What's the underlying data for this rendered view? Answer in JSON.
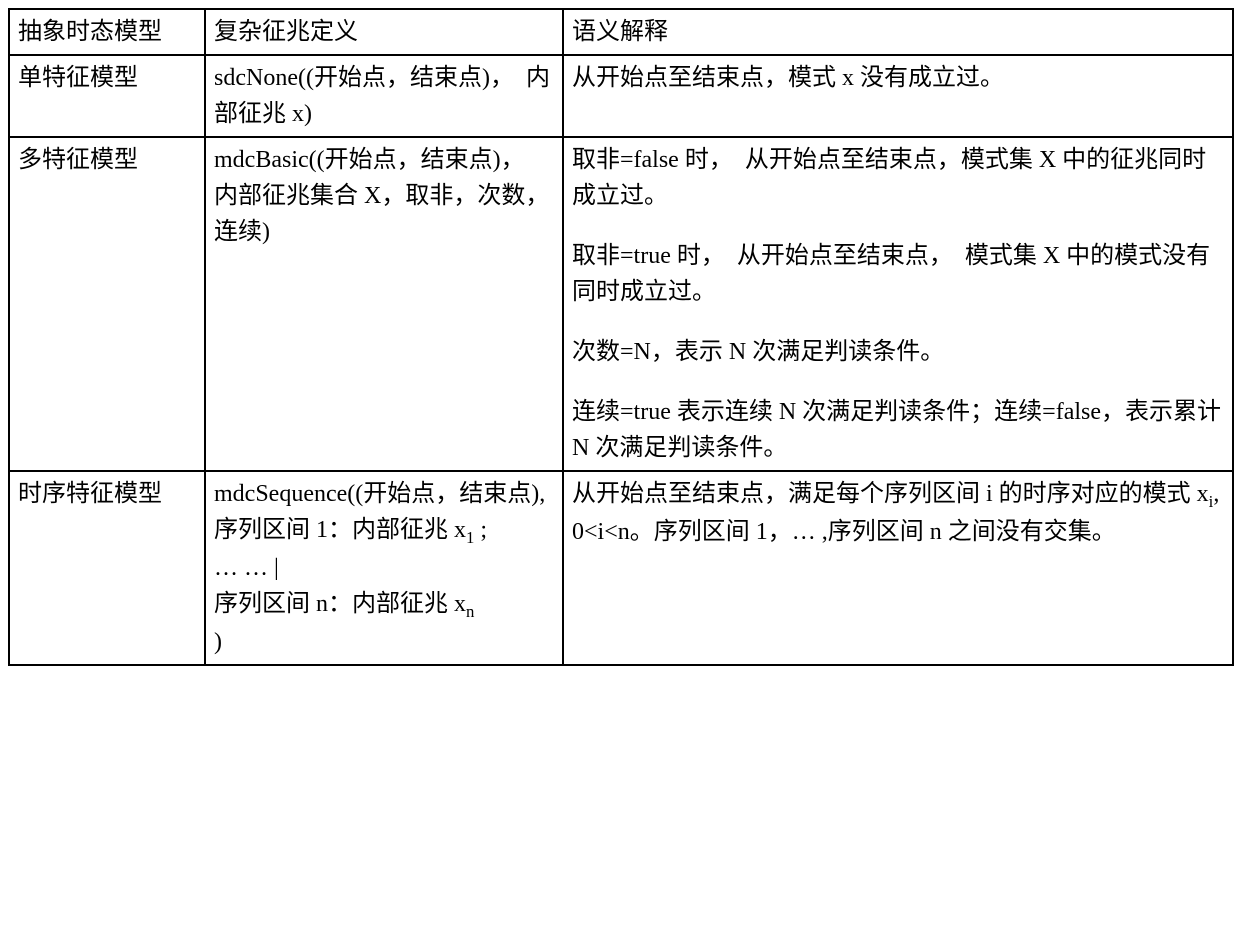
{
  "table": {
    "headers": {
      "col1": "抽象时态模型",
      "col2": "复杂征兆定义",
      "col3": "语义解释"
    },
    "rows": [
      {
        "model": "单特征模型",
        "definition_parts": [
          "sdcNone((开始点，结束点)，　内部征兆 x)"
        ],
        "semantic_parts": [
          "从开始点至结束点，模式 x 没有成立过。"
        ]
      },
      {
        "model": "多特征模型",
        "definition_parts": [
          "mdcBasic((开始点，结束点)，　内部征兆集合 X，取非，次数，连续)"
        ],
        "semantic_parts": [
          "取非=false 时，　从开始点至结束点，模式集 X 中的征兆同时成立过。",
          "取非=true 时，　从开始点至结束点，　模式集 X 中的模式没有同时成立过。",
          "次数=N，表示 N 次满足判读条件。",
          "连续=true 表示连续 N 次满足判读条件；连续=false，表示累计 N 次满足判读条件。"
        ]
      },
      {
        "model": "时序特征模型",
        "definition_lines": [
          "mdcSequence((开始点，结束点),",
          "序列区间 1：内部征兆 x",
          "… … |",
          "序列区间 n：内部征兆 x",
          ")"
        ],
        "definition_sub1": "1",
        "definition_subn": "n",
        "semantic": "从开始点至结束点，满足每个序列区间 i 的时序对应的模式 x",
        "semantic_sub": "i",
        "semantic_rest": ", 0<i<n。序列区间 1，… ,序列区间 n 之间没有交集。"
      }
    ]
  }
}
